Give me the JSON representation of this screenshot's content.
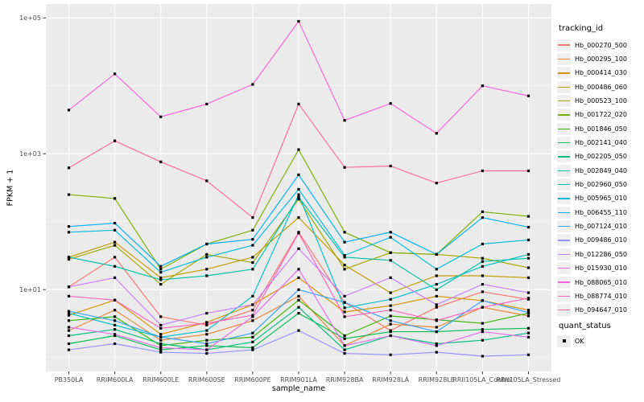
{
  "figure": {
    "panel_bg": "#EBEBEB",
    "grid_color": "#FFFFFF",
    "tick_color": "#333333",
    "axis_text_color": "#4D4D4D",
    "legend_key_bg": "#EFEFEF",
    "point_color": "#000000"
  },
  "chart_data": {
    "type": "line",
    "title": "",
    "xlabel": "sample_name",
    "ylabel": "FPKM + 1",
    "y_scale": "log10",
    "grid": true,
    "ylim": [
      0.625,
      160000
    ],
    "y_ticks": [
      {
        "label": "1e+05",
        "value": 100000
      },
      {
        "label": "1e+03",
        "value": 1000
      },
      {
        "label": "1e+01",
        "value": 10
      }
    ],
    "y_minor_ticks": [
      10000,
      100,
      1
    ],
    "categories": [
      "PB350LA",
      "RRIM600LA",
      "RRIM600LE",
      "RRIM600SE",
      "RRIM600PE",
      "RRIM901LA",
      "RRIM928BA",
      "RRIM928LA",
      "RRIM928LE",
      "RRII105LA_Control",
      "RRII105LA_Stressed"
    ],
    "legend": {
      "title": "tracking_id",
      "position": "right"
    },
    "legend2": {
      "title": "quant_status",
      "items": [
        {
          "label": "OK",
          "marker": "black-square"
        }
      ]
    },
    "series": [
      {
        "name": "Hb_000270_500",
        "color": "#F8766D",
        "values": [
          11,
          30,
          4,
          3,
          5,
          70,
          6.5,
          2.5,
          5.5,
          9.3,
          7.2
        ]
      },
      {
        "name": "Hb_000295_100",
        "color": "#EA8331",
        "values": [
          2.5,
          5,
          1.8,
          2.2,
          3.5,
          8,
          1.5,
          3.1,
          2.8,
          5.5,
          4.1
        ]
      },
      {
        "name": "Hb_000414_030",
        "color": "#D89000",
        "values": [
          4.2,
          7,
          2.2,
          3.3,
          6,
          15,
          4.7,
          5.8,
          8,
          6.9,
          5
        ]
      },
      {
        "name": "Hb_000486_060",
        "color": "#C09B00",
        "values": [
          30,
          50,
          15,
          20,
          30,
          115,
          23,
          9,
          16,
          16,
          15
        ]
      },
      {
        "name": "Hb_000523_100",
        "color": "#A3A500",
        "values": [
          28,
          45,
          12,
          33,
          25,
          215,
          20,
          35,
          33,
          29,
          21
        ]
      },
      {
        "name": "Hb_001722_020",
        "color": "#7CAE00",
        "values": [
          250,
          220,
          20,
          47,
          75,
          1150,
          70,
          35,
          33,
          140,
          120
        ]
      },
      {
        "name": "Hb_001846_050",
        "color": "#39B600",
        "values": [
          3.5,
          4,
          1.5,
          1.8,
          2,
          7,
          2.1,
          4.1,
          3.6,
          3.2,
          4.5
        ]
      },
      {
        "name": "Hb_002141_040",
        "color": "#00BB4E",
        "values": [
          1.6,
          2.1,
          1.3,
          1.5,
          1.4,
          4.5,
          1.9,
          2.4,
          2.4,
          2.6,
          2.7
        ]
      },
      {
        "name": "Hb_002205_050",
        "color": "#00BF7D",
        "values": [
          2.1,
          2.6,
          1.6,
          1.3,
          1.7,
          5.5,
          1.3,
          2.1,
          1.6,
          1.8,
          2.3
        ]
      },
      {
        "name": "Hb_002849_040",
        "color": "#00C1A3",
        "values": [
          30,
          22,
          14,
          16,
          20,
          230,
          30,
          27,
          10,
          26,
          29
        ]
      },
      {
        "name": "Hb_002960_050",
        "color": "#00BFC4",
        "values": [
          4.5,
          3,
          2,
          2.5,
          8,
          250,
          5.4,
          7.2,
          12,
          22,
          33
        ]
      },
      {
        "name": "Hb_005965_010",
        "color": "#00BADE",
        "values": [
          70,
          75,
          18,
          30,
          45,
          300,
          32,
          59,
          20,
          47,
          54
        ]
      },
      {
        "name": "Hb_006455_110",
        "color": "#00B0F6",
        "values": [
          85,
          95,
          22,
          47,
          55,
          490,
          50,
          70,
          33,
          115,
          83
        ]
      },
      {
        "name": "Hb_007124_010",
        "color": "#35A2FF",
        "values": [
          4.8,
          3.5,
          2,
          1.6,
          2.3,
          10,
          6.5,
          3.5,
          2.4,
          6.9,
          4.6
        ]
      },
      {
        "name": "Hb_009486_010",
        "color": "#9590FF",
        "values": [
          1.3,
          1.6,
          1.2,
          1.15,
          1.3,
          2.5,
          1.15,
          1.1,
          1.2,
          1.05,
          1.1
        ]
      },
      {
        "name": "Hb_012286_050",
        "color": "#C77CFF",
        "values": [
          11,
          15,
          3,
          4.5,
          6,
          40,
          8,
          15,
          6,
          12,
          9
        ]
      },
      {
        "name": "Hb_015930_010",
        "color": "#E76BF3",
        "values": [
          2.8,
          2.2,
          1.4,
          1.3,
          4,
          20,
          1.5,
          2.1,
          1.5,
          2.4,
          2
        ]
      },
      {
        "name": "Hb_088065_010",
        "color": "#FA62DB",
        "values": [
          4400,
          15000,
          3500,
          5400,
          10500,
          89000,
          3100,
          5500,
          2000,
          10000,
          7100
        ]
      },
      {
        "name": "Hb_088774_010",
        "color": "#FF62BC",
        "values": [
          8,
          7,
          2.7,
          3.2,
          4.2,
          68,
          4,
          5,
          3.5,
          5.5,
          7.5
        ]
      },
      {
        "name": "Hb_094647_010",
        "color": "#FF6A98",
        "values": [
          620,
          1550,
          760,
          400,
          115,
          5400,
          630,
          660,
          370,
          560,
          560
        ]
      }
    ]
  }
}
